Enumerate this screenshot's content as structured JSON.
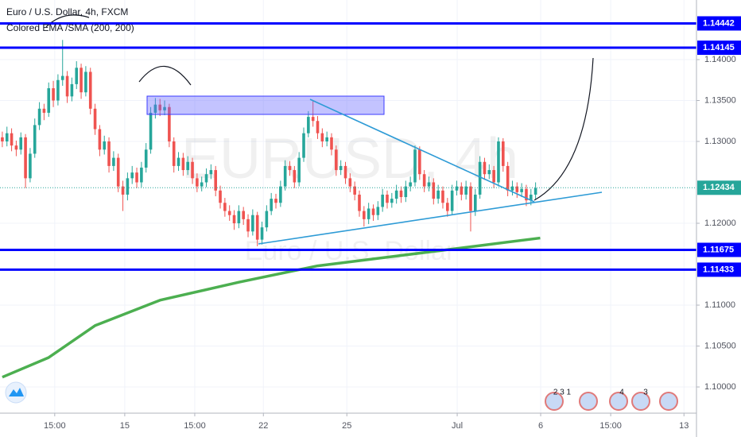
{
  "chart_data": {
    "type": "candlestick",
    "title": "Euro / U.S. Dollar, 4h, FXCM",
    "watermark": "EURUSD, 4h",
    "watermark_subtitle": "Euro / U.S. Dollar",
    "up_color": "#26a69a",
    "down_color": "#ef5350",
    "grid": true,
    "xlim": [
      -0.5,
      149.7
    ],
    "ylim": [
      1.0968,
      1.14728
    ],
    "xticks": [
      {
        "value": 11.3,
        "label": "15:00"
      },
      {
        "value": 26.4,
        "label": "15"
      },
      {
        "value": 41.5,
        "label": "15:00"
      },
      {
        "value": 56.3,
        "label": "22"
      },
      {
        "value": 74.3,
        "label": "25"
      },
      {
        "value": 98.1,
        "label": "Jul"
      },
      {
        "value": 116.1,
        "label": "6"
      },
      {
        "value": 131.2,
        "label": "15:00"
      },
      {
        "value": 147,
        "label": "13"
      }
    ],
    "yticks": [
      {
        "value": 1.14,
        "label": "1.14000"
      },
      {
        "value": 1.135,
        "label": "1.13500"
      },
      {
        "value": 1.13,
        "label": "1.13000"
      },
      {
        "value": 1.12,
        "label": "1.12000"
      },
      {
        "value": 1.11,
        "label": "1.11000"
      },
      {
        "value": 1.105,
        "label": "1.10500"
      },
      {
        "value": 1.1,
        "label": "1.10000"
      }
    ],
    "open": [
      1.1305,
      1.13,
      1.131,
      1.1295,
      1.129,
      1.1305,
      1.1255,
      1.1285,
      1.132,
      1.134,
      1.1335,
      1.1365,
      1.135,
      1.1375,
      1.138,
      1.1355,
      1.137,
      1.139,
      1.136,
      1.1385,
      1.134,
      1.1315,
      1.129,
      1.13,
      1.127,
      1.128,
      1.1245,
      1.1235,
      1.1255,
      1.1262,
      1.125,
      1.1268,
      1.129,
      1.1335,
      1.1345,
      1.1338,
      1.1342,
      1.13,
      1.127,
      1.128,
      1.1265,
      1.1275,
      1.1255,
      1.1245,
      1.125,
      1.126,
      1.1265,
      1.124,
      1.1225,
      1.1215,
      1.121,
      1.12,
      1.1215,
      1.1205,
      1.119,
      1.121,
      1.118,
      1.1195,
      1.1215,
      1.123,
      1.1225,
      1.1245,
      1.127,
      1.1265,
      1.125,
      1.128,
      1.131,
      1.133,
      1.1325,
      1.131,
      1.13,
      1.1305,
      1.129,
      1.1265,
      1.127,
      1.1255,
      1.1245,
      1.1235,
      1.1215,
      1.1205,
      1.1218,
      1.121,
      1.122,
      1.1235,
      1.1225,
      1.123,
      1.124,
      1.1232,
      1.1245,
      1.125,
      1.129,
      1.126,
      1.1245,
      1.125,
      1.123,
      1.124,
      1.1225,
      1.1215,
      1.124,
      1.1245,
      1.1235,
      1.1245,
      1.1215,
      1.1235,
      1.1275,
      1.126,
      1.1265,
      1.125,
      1.13,
      1.127,
      1.124,
      1.1245,
      1.1238,
      1.1242,
      1.1228,
      1.1235
    ],
    "high": [
      1.1312,
      1.1318,
      1.1316,
      1.1301,
      1.1311,
      1.1309,
      1.1292,
      1.1328,
      1.1348,
      1.1346,
      1.1372,
      1.1374,
      1.1382,
      1.1424,
      1.1386,
      1.1378,
      1.1398,
      1.1395,
      1.1392,
      1.139,
      1.1346,
      1.132,
      1.1307,
      1.1305,
      1.1288,
      1.1285,
      1.1252,
      1.1262,
      1.127,
      1.1268,
      1.1275,
      1.1298,
      1.1342,
      1.1353,
      1.1352,
      1.135,
      1.1346,
      1.1305,
      1.1287,
      1.1286,
      1.1282,
      1.128,
      1.1261,
      1.1257,
      1.1267,
      1.1272,
      1.127,
      1.1246,
      1.1231,
      1.1222,
      1.1216,
      1.1222,
      1.122,
      1.1211,
      1.1217,
      1.1214,
      1.1202,
      1.1222,
      1.1237,
      1.1236,
      1.1252,
      1.1277,
      1.1276,
      1.127,
      1.1287,
      1.1317,
      1.1337,
      1.135,
      1.1331,
      1.1316,
      1.1312,
      1.131,
      1.1295,
      1.1277,
      1.1275,
      1.1261,
      1.1251,
      1.124,
      1.1221,
      1.1225,
      1.1223,
      1.1227,
      1.1242,
      1.124,
      1.1237,
      1.1247,
      1.1245,
      1.1252,
      1.1257,
      1.1295,
      1.1294,
      1.1265,
      1.1257,
      1.1255,
      1.1247,
      1.1245,
      1.1231,
      1.1247,
      1.1252,
      1.125,
      1.1252,
      1.125,
      1.1242,
      1.1282,
      1.128,
      1.1272,
      1.127,
      1.1305,
      1.1304,
      1.1275,
      1.1252,
      1.125,
      1.1249,
      1.1247,
      1.1242,
      1.125
    ],
    "low": [
      1.1293,
      1.1294,
      1.1288,
      1.1282,
      1.1284,
      1.1243,
      1.125,
      1.128,
      1.1314,
      1.1326,
      1.133,
      1.1342,
      1.1344,
      1.1368,
      1.1347,
      1.1349,
      1.1364,
      1.1352,
      1.1355,
      1.1333,
      1.1308,
      1.1282,
      1.1284,
      1.1262,
      1.1264,
      1.1238,
      1.1215,
      1.1228,
      1.1248,
      1.1243,
      1.1244,
      1.1262,
      1.1285,
      1.1328,
      1.1331,
      1.1332,
      1.1293,
      1.1262,
      1.1264,
      1.1258,
      1.1259,
      1.1248,
      1.1238,
      1.1239,
      1.1244,
      1.1254,
      1.1233,
      1.1218,
      1.1208,
      1.1203,
      1.1192,
      1.1194,
      1.1198,
      1.1183,
      1.1185,
      1.1172,
      1.1174,
      1.119,
      1.121,
      1.1218,
      1.122,
      1.124,
      1.1258,
      1.1243,
      1.1245,
      1.1275,
      1.1305,
      1.1318,
      1.1303,
      1.1293,
      1.1294,
      1.1283,
      1.1258,
      1.1259,
      1.1248,
      1.1238,
      1.1228,
      1.1208,
      1.1196,
      1.1199,
      1.1203,
      1.1204,
      1.1214,
      1.1218,
      1.1219,
      1.1224,
      1.1225,
      1.1226,
      1.1239,
      1.1245,
      1.1253,
      1.1238,
      1.1239,
      1.1223,
      1.1224,
      1.1218,
      1.1208,
      1.121,
      1.1234,
      1.1228,
      1.1229,
      1.119,
      1.1209,
      1.123,
      1.1253,
      1.1254,
      1.1243,
      1.1245,
      1.1263,
      1.1233,
      1.1234,
      1.1231,
      1.1232,
      1.1221,
      1.1222,
      1.1229
    ],
    "close": [
      1.13,
      1.131,
      1.1295,
      1.129,
      1.1305,
      1.1255,
      1.1285,
      1.132,
      1.134,
      1.1335,
      1.1365,
      1.135,
      1.1375,
      1.138,
      1.1355,
      1.137,
      1.139,
      1.136,
      1.1385,
      1.134,
      1.1315,
      1.129,
      1.13,
      1.127,
      1.128,
      1.1245,
      1.1235,
      1.1255,
      1.1262,
      1.125,
      1.1268,
      1.129,
      1.1335,
      1.1345,
      1.1338,
      1.1342,
      1.13,
      1.127,
      1.128,
      1.1265,
      1.1275,
      1.1255,
      1.1245,
      1.125,
      1.126,
      1.1265,
      1.124,
      1.1225,
      1.1215,
      1.121,
      1.12,
      1.1215,
      1.1205,
      1.119,
      1.121,
      1.118,
      1.1195,
      1.1215,
      1.123,
      1.1225,
      1.1245,
      1.127,
      1.1265,
      1.125,
      1.128,
      1.131,
      1.133,
      1.1325,
      1.131,
      1.13,
      1.1305,
      1.129,
      1.1265,
      1.127,
      1.1255,
      1.1245,
      1.1235,
      1.1215,
      1.1205,
      1.1218,
      1.121,
      1.122,
      1.1235,
      1.1225,
      1.123,
      1.124,
      1.1232,
      1.1245,
      1.125,
      1.129,
      1.126,
      1.1245,
      1.125,
      1.123,
      1.124,
      1.1225,
      1.1215,
      1.124,
      1.1245,
      1.1235,
      1.1245,
      1.1215,
      1.1235,
      1.1275,
      1.126,
      1.1265,
      1.125,
      1.13,
      1.127,
      1.124,
      1.1245,
      1.1238,
      1.1242,
      1.1228,
      1.1235,
      1.1243
    ],
    "indicator": {
      "name": "Colored EMA /SMA (200, 200)",
      "color": "#4caf50",
      "x": [
        0,
        10,
        20,
        34,
        51,
        68,
        85,
        102,
        116
      ],
      "values": [
        1.1012,
        1.1036,
        1.1075,
        1.1106,
        1.1128,
        1.1148,
        1.116,
        1.1172,
        1.1182
      ]
    },
    "levels": [
      1.14442,
      1.14145,
      1.11675,
      1.11433
    ],
    "level_color": "#0000ff",
    "last_price": 1.12434,
    "last_price_color": "#26a69a",
    "event_labels": [
      "2 3 1",
      "4",
      "3"
    ]
  }
}
